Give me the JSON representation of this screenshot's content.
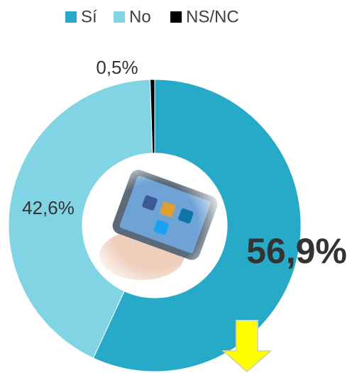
{
  "chart_data": {
    "type": "pie",
    "categories": [
      "Sí",
      "No",
      "NS/NC"
    ],
    "values": [
      56.9,
      42.6,
      0.5
    ],
    "value_labels": [
      "56,9%",
      "42,6%",
      "0,5%"
    ],
    "colors": [
      "#27aac8",
      "#80d4e4",
      "#000000"
    ]
  }
}
